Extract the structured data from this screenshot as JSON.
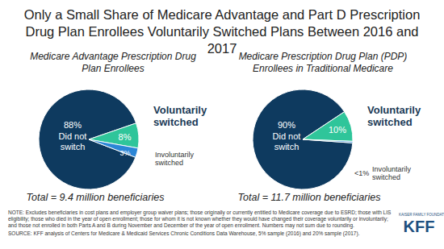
{
  "title": "Only a Small Share of Medicare Advantage and Part D Prescription Drug Plan Enrollees Voluntarily Switched Plans Between 2016 and 2017",
  "chart_data": [
    {
      "type": "pie",
      "title": "Medicare Advantage Prescription Drug Plan Enrollees",
      "categories": [
        "Did not switch",
        "Voluntarily switched",
        "Involuntarily switched"
      ],
      "values": [
        88,
        8,
        3
      ],
      "value_labels": [
        "88%",
        "8%",
        "3%"
      ],
      "colors": [
        "#0e3a5f",
        "#2fc59a",
        "#2b86d6"
      ],
      "data_labels": true,
      "annotation": "Total = 9.4 million beneficiaries"
    },
    {
      "type": "pie",
      "title": "Medicare Prescription Drug Plan (PDP) Enrollees in Traditional Medicare",
      "categories": [
        "Did not switch",
        "Voluntarily switched",
        "Involuntarily switched"
      ],
      "values": [
        90,
        10,
        0.5
      ],
      "value_labels": [
        "90%",
        "10%",
        "<1%"
      ],
      "colors": [
        "#0e3a5f",
        "#2fc59a",
        "#2b86d6"
      ],
      "data_labels": true,
      "annotation": "Total = 11.7 million beneficiaries"
    }
  ],
  "note": "NOTE: Excludes beneficiaries in cost plans and employer group waiver plans; those originally or currently entitled to Medicare coverage due to ESRD; those with LIS eligibility; those who died in the year of open enrollment; those for whom it is not known whether they would have changed their coverage voluntarily or involuntarily; and those not enrolled in both Parts A and B during November and December of the year of open enrollment. Numbers may not sum due to rounding.",
  "source": "SOURCE: KFF analysis of Centers for Medicare & Medicaid Services Chronic Conditions Data Warehouse, 5% sample (2016) and 20% sample (2017).",
  "logo": {
    "name": "KFF",
    "subtitle": "KAISER FAMILY FOUNDATION"
  }
}
